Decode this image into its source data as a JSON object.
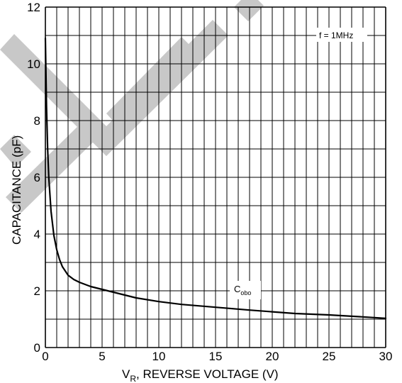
{
  "chart_data": {
    "type": "line",
    "xlabel": {
      "main": "V",
      "sub": "R",
      "rest": ", REVERSE VOLTAGE (V)"
    },
    "ylabel": "CAPACITANCE (pF)",
    "xlim": [
      0,
      30
    ],
    "ylim": [
      0,
      12
    ],
    "x_ticks": [
      "0",
      "5",
      "10",
      "15",
      "20",
      "25",
      "30"
    ],
    "y_ticks": [
      "0",
      "2",
      "4",
      "6",
      "8",
      "10",
      "12"
    ],
    "x_tick_values": [
      0,
      5,
      10,
      15,
      20,
      25,
      30
    ],
    "y_tick_values": [
      0,
      2,
      4,
      6,
      8,
      10,
      12
    ],
    "grid": true,
    "condition_label": "f = 1MHz",
    "series": [
      {
        "name": "Cobo",
        "label_main": "C",
        "label_sub": "obo",
        "color": "#000000",
        "x": [
          0,
          0.1,
          0.2,
          0.3,
          0.5,
          0.75,
          1.0,
          1.25,
          1.5,
          2.0,
          2.5,
          3.0,
          4.0,
          5.0,
          6.0,
          8.0,
          10.0,
          12.0,
          15.0,
          18.0,
          20.0,
          22.0,
          25.0,
          28.0,
          30.0
        ],
        "y": [
          10.9,
          8.5,
          7.0,
          6.0,
          4.8,
          3.95,
          3.45,
          3.1,
          2.85,
          2.55,
          2.4,
          2.3,
          2.15,
          2.05,
          1.95,
          1.75,
          1.62,
          1.52,
          1.42,
          1.32,
          1.26,
          1.2,
          1.15,
          1.08,
          1.03
        ]
      }
    ]
  },
  "watermark_color": "#c8c8c8"
}
